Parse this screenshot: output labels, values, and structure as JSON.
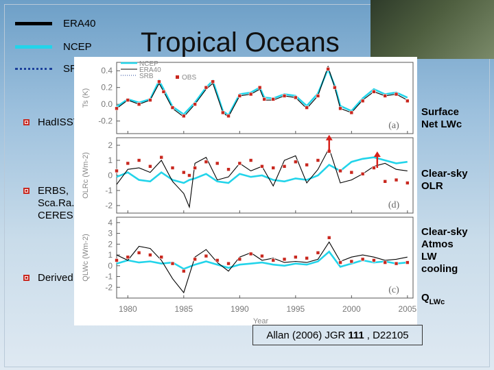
{
  "slide": {
    "title": "Tropical Oceans",
    "citation_pre": "Allan (2006) JGR ",
    "citation_bold": "111",
    "citation_post": ", D22105"
  },
  "legend": [
    {
      "label": "ERA40",
      "color": "#000000",
      "style": "solid"
    },
    {
      "label": "NCEP",
      "color": "#22d4ea",
      "style": "solid"
    },
    {
      "label": "SRB",
      "color": "#1b3f9b",
      "style": "dotted"
    }
  ],
  "obs_labels": {
    "hadisst": "HadISST",
    "erbs": "ERBS,\nSca.Ra.B,\nCERES",
    "derived": "Derived"
  },
  "right_labels": {
    "surface": "Surface\nNet LWc",
    "olr": "Clear-sky\nOLR",
    "cooling": "Clear-sky\nAtmos\nLW\ncooling",
    "q_main": "Q",
    "q_sub": "LWc"
  },
  "colors": {
    "era": "#000000",
    "ncep": "#22d4ea",
    "srb": "#1b3f9b",
    "obs": "#c9281f",
    "arrow": "#d6201a"
  },
  "chart_data": {
    "type": "line",
    "xlabel": "Year",
    "x_ticks": [
      1980,
      1985,
      1990,
      1995,
      2000,
      2005
    ],
    "xlim": [
      1979,
      2005.5
    ],
    "inset_legend": [
      "NCEP",
      "ERA40",
      "SRB",
      "OBS"
    ],
    "panels": [
      {
        "letter": "(a)",
        "ylabel": "Ts (K)",
        "ylim": [
          -0.35,
          0.5
        ],
        "yticks": [
          -0.2,
          0.0,
          0.2,
          0.4
        ],
        "ytick_labels": [
          "-0.2",
          "0.0",
          "0.2",
          "0.4"
        ],
        "x": [
          1979.0,
          1980.0,
          1981.0,
          1982.0,
          1982.8,
          1983.2,
          1984.0,
          1985.0,
          1986.0,
          1987.0,
          1987.6,
          1988.5,
          1989.0,
          1990.0,
          1991.0,
          1991.8,
          1992.2,
          1993.0,
          1994.0,
          1995.0,
          1996.0,
          1997.0,
          1997.9,
          1998.5,
          1999.0,
          2000.0,
          2001.0,
          2002.0,
          2003.0,
          2004.0,
          2005.0
        ],
        "series": [
          {
            "name": "ERA40",
            "values": [
              -0.05,
              0.05,
              0.0,
              0.05,
              0.25,
              0.15,
              -0.05,
              -0.15,
              0.0,
              0.18,
              0.25,
              -0.1,
              -0.15,
              0.1,
              0.12,
              0.18,
              0.05,
              0.05,
              0.1,
              0.08,
              -0.05,
              0.1,
              0.45,
              0.2,
              -0.05,
              -0.1,
              0.05,
              0.15,
              0.1,
              0.12,
              0.05
            ]
          },
          {
            "name": "NCEP",
            "values": [
              -0.03,
              0.06,
              0.02,
              0.06,
              0.28,
              0.18,
              -0.03,
              -0.12,
              0.02,
              0.2,
              0.28,
              -0.08,
              -0.13,
              0.12,
              0.14,
              0.2,
              0.08,
              0.07,
              0.12,
              0.1,
              -0.02,
              0.13,
              0.42,
              0.22,
              -0.02,
              -0.08,
              0.07,
              0.18,
              0.12,
              0.14,
              0.08
            ]
          },
          {
            "name": "OBS",
            "values": [
              -0.05,
              0.05,
              0.0,
              0.05,
              0.27,
              0.15,
              -0.04,
              -0.14,
              0.0,
              0.2,
              0.27,
              -0.1,
              -0.14,
              0.1,
              0.12,
              0.2,
              0.06,
              0.06,
              0.1,
              0.08,
              -0.04,
              0.1,
              0.42,
              0.2,
              -0.05,
              -0.1,
              0.04,
              0.15,
              0.1,
              0.12,
              0.04
            ]
          }
        ]
      },
      {
        "letter": "(d)",
        "ylabel": "OLRc (Wm-2)",
        "ylim": [
          -2.5,
          2.5
        ],
        "yticks": [
          -2,
          -1,
          0,
          1,
          2
        ],
        "ytick_labels": [
          "-2",
          "-1",
          "0",
          "1",
          "2"
        ],
        "x": [
          1979.0,
          1980.0,
          1981.0,
          1982.0,
          1983.0,
          1984.0,
          1985.0,
          1985.5,
          1986.0,
          1987.0,
          1988.0,
          1989.0,
          1990.0,
          1991.0,
          1992.0,
          1993.0,
          1994.0,
          1995.0,
          1996.0,
          1997.0,
          1998.0,
          1999.0,
          2000.0,
          2001.0,
          2002.0,
          2003.0,
          2004.0,
          2005.0
        ],
        "series": [
          {
            "name": "ERA40",
            "values": [
              -0.6,
              0.4,
              0.5,
              0.2,
              1.0,
              -0.4,
              -1.2,
              -2.1,
              0.8,
              1.2,
              -0.3,
              -0.1,
              0.8,
              0.3,
              0.6,
              -0.7,
              1.0,
              1.3,
              -0.5,
              0.4,
              1.8,
              -0.5,
              -0.3,
              0.1,
              0.6,
              0.8,
              0.4,
              0.3
            ]
          },
          {
            "name": "NCEP",
            "values": [
              -0.1,
              0.2,
              -0.3,
              -0.4,
              0.2,
              -0.3,
              -0.5,
              -0.3,
              -0.2,
              0.1,
              -0.4,
              -0.5,
              0.1,
              -0.1,
              0.0,
              -0.3,
              -0.4,
              -0.2,
              -0.3,
              0.0,
              0.7,
              0.3,
              0.9,
              1.1,
              1.2,
              1.0,
              0.8,
              0.9
            ]
          },
          {
            "name": "OBS",
            "values": [
              0.3,
              0.8,
              1.0,
              0.6,
              1.2,
              0.5,
              0.2,
              0.0,
              0.5,
              0.9,
              0.8,
              0.4,
              0.8,
              1.0,
              0.6,
              0.5,
              0.6,
              0.9,
              0.7,
              1.0,
              1.6,
              0.3,
              0.2,
              0.1,
              0.5,
              -0.4,
              -0.3,
              -0.5
            ]
          }
        ],
        "arrows_at_x": [
          1998.0,
          2002.3
        ]
      },
      {
        "letter": "(c)",
        "ylabel": "QLWc (Wm-2)",
        "ylim": [
          -3.0,
          4.5
        ],
        "yticks": [
          -2,
          -1,
          0,
          1,
          2,
          3,
          4
        ],
        "ytick_labels": [
          "-2",
          "-1",
          "0",
          "1",
          "2",
          "3",
          "4"
        ],
        "x": [
          1979.0,
          1980.0,
          1981.0,
          1982.0,
          1983.0,
          1984.0,
          1985.0,
          1986.0,
          1987.0,
          1988.0,
          1989.0,
          1990.0,
          1991.0,
          1992.0,
          1993.0,
          1994.0,
          1995.0,
          1996.0,
          1997.0,
          1998.0,
          1999.0,
          2000.0,
          2001.0,
          2002.0,
          2003.0,
          2004.0,
          2005.0
        ],
        "series": [
          {
            "name": "ERA40",
            "values": [
              1.0,
              0.5,
              1.8,
              1.6,
              0.5,
              -1.2,
              -2.5,
              0.8,
              1.5,
              0.3,
              -0.5,
              0.8,
              1.2,
              0.5,
              0.7,
              0.3,
              0.4,
              0.3,
              0.6,
              2.2,
              0.4,
              0.8,
              1.0,
              0.8,
              0.5,
              0.6,
              0.8
            ]
          },
          {
            "name": "NCEP",
            "values": [
              0.2,
              0.5,
              0.3,
              0.4,
              0.2,
              0.3,
              -0.3,
              0.1,
              0.4,
              0.1,
              -0.2,
              0.1,
              0.2,
              0.3,
              0.1,
              0.0,
              0.2,
              0.1,
              0.4,
              1.3,
              -0.1,
              0.2,
              0.5,
              0.3,
              0.4,
              0.2,
              0.3
            ]
          },
          {
            "name": "OBS",
            "values": [
              0.5,
              0.8,
              1.2,
              1.0,
              0.8,
              0.2,
              -0.5,
              0.6,
              0.9,
              0.5,
              0.2,
              0.6,
              1.1,
              0.9,
              0.5,
              0.6,
              0.8,
              0.7,
              1.2,
              2.6,
              0.3,
              0.4,
              0.6,
              0.5,
              0.3,
              0.2,
              0.3
            ]
          }
        ]
      }
    ]
  }
}
